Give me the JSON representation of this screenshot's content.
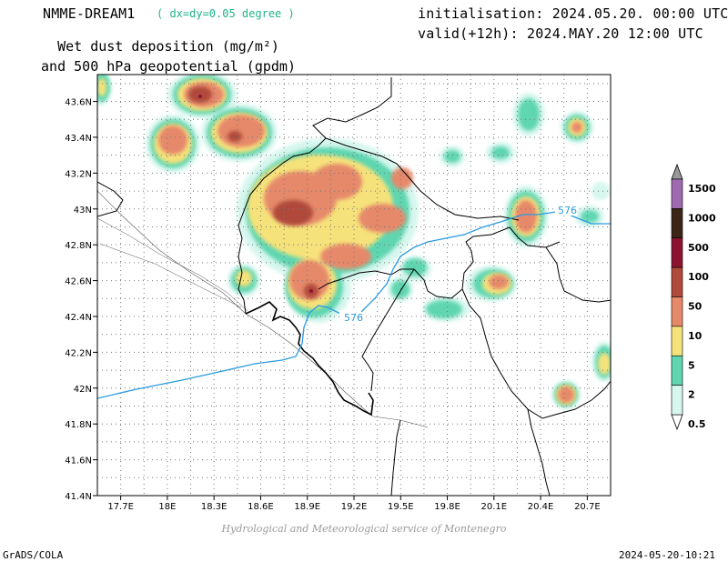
{
  "header": {
    "model": "NMME-DREAM1",
    "resolution": "( dx=dy=0.05 degree )",
    "init": "initialisation: 2024.05.20. 00:00 UTC",
    "valid": "valid(+12h): 2024.MAY.20 12:00 UTC",
    "title_line1": "Wet dust deposition (mg/m²)",
    "title_line2": "and 500 hPa geopotential (gpdm)"
  },
  "map": {
    "lon_ticks": [
      "17.7E",
      "18E",
      "18.3E",
      "18.6E",
      "18.9E",
      "19.2E",
      "19.5E",
      "19.8E",
      "20.1E",
      "20.4E",
      "20.7E"
    ],
    "lat_ticks": [
      "43.6N",
      "43.4N",
      "43.2N",
      "43N",
      "42.8N",
      "42.6N",
      "42.4N",
      "42.2N",
      "42N",
      "41.8N",
      "41.6N",
      "41.4N"
    ],
    "lon_range": [
      17.55,
      20.85
    ],
    "lat_range": [
      41.4,
      43.75
    ],
    "contour_label": "576",
    "contour_color": "#2a9be0"
  },
  "legend": {
    "levels": [
      "1500",
      "1000",
      "500",
      "100",
      "50",
      "10",
      "5",
      "2",
      "0.5"
    ],
    "colors": [
      "#a06ab0",
      "#3b2516",
      "#8c1430",
      "#b04a3a",
      "#e6896a",
      "#f6e27a",
      "#5fd6b0",
      "#d6f6ee"
    ]
  },
  "footer": {
    "credit": "Hydrological and Meteorological service of Montenegro",
    "left": "GrADS/COLA",
    "right": "2024-05-20-10:21"
  }
}
